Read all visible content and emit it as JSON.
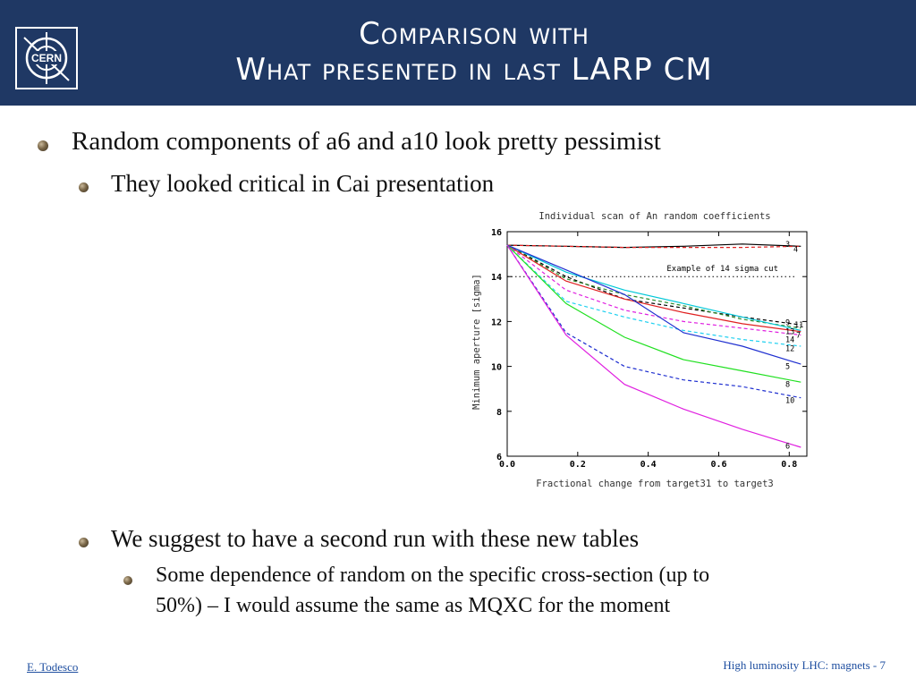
{
  "header": {
    "title_line1": "Comparison with",
    "title_line2": "What presented in last LARP CM",
    "logo_text": "CERN"
  },
  "bullets": {
    "b1": "Random components of a6 and a10 look pretty pessimist",
    "b1_1": "They looked critical in Cai presentation",
    "b2": "We suggest to have a second run with these new tables",
    "b2_1_line1": "Some dependence of random on the specific cross-section (up to",
    "b2_1_line2": "50%) – I would assume the same as MQXC for the moment"
  },
  "footer": {
    "author": "E. Todesco",
    "page": "High luminosity LHC: magnets - 7"
  },
  "colors": {
    "header_bg": "#1f3864",
    "footer_link": "#1f4fa0"
  },
  "chart_data": {
    "type": "line",
    "title": "Individual scan of An random coefficients",
    "xlabel": "Fractional change from target31 to target3",
    "ylabel": "Minimum aperture [sigma]",
    "xlim": [
      0.0,
      0.85
    ],
    "ylim": [
      6,
      16
    ],
    "xticks": [
      "0.0",
      "0.2",
      "0.4",
      "0.6",
      "0.8"
    ],
    "yticks": [
      "6",
      "8",
      "10",
      "12",
      "14",
      "16"
    ],
    "annotation": "Example of 14 sigma cut",
    "reference_line": 14,
    "x": [
      0.0,
      0.167,
      0.333,
      0.5,
      0.667,
      0.833
    ],
    "series": [
      {
        "name": "3",
        "color": "#000000",
        "dash": false,
        "values": [
          15.4,
          15.35,
          15.3,
          15.35,
          15.45,
          15.35
        ]
      },
      {
        "name": "4",
        "color": "#e02020",
        "dash": true,
        "values": [
          15.4,
          15.35,
          15.3,
          15.3,
          15.3,
          15.35
        ]
      },
      {
        "name": "9",
        "color": "#000000",
        "dash": true,
        "values": [
          15.4,
          14.0,
          13.0,
          12.6,
          12.2,
          11.85
        ]
      },
      {
        "name": "11",
        "color": "#2a8a2a",
        "dash": true,
        "values": [
          15.4,
          13.9,
          13.2,
          12.7,
          12.1,
          11.7
        ]
      },
      {
        "name": "13",
        "color": "#e02020",
        "dash": false,
        "values": [
          15.4,
          13.8,
          13.0,
          12.4,
          11.9,
          11.55
        ]
      },
      {
        "name": "7",
        "color": "#00c8d8",
        "dash": false,
        "values": [
          15.4,
          14.2,
          13.4,
          12.8,
          12.2,
          11.6
        ]
      },
      {
        "name": "14",
        "color": "#e020e0",
        "dash": true,
        "values": [
          15.4,
          13.4,
          12.5,
          12.0,
          11.7,
          11.4
        ]
      },
      {
        "name": "12",
        "color": "#20d0f0",
        "dash": true,
        "values": [
          15.4,
          12.9,
          12.2,
          11.6,
          11.2,
          10.9
        ]
      },
      {
        "name": "5",
        "color": "#2030d0",
        "dash": false,
        "values": [
          15.4,
          14.3,
          13.2,
          11.5,
          10.9,
          10.1
        ]
      },
      {
        "name": "8",
        "color": "#20e020",
        "dash": false,
        "values": [
          15.4,
          12.8,
          11.3,
          10.3,
          9.8,
          9.3
        ]
      },
      {
        "name": "10",
        "color": "#2030d0",
        "dash": true,
        "values": [
          15.4,
          11.5,
          10.0,
          9.4,
          9.1,
          8.6
        ]
      },
      {
        "name": "6",
        "color": "#e020e0",
        "dash": false,
        "values": [
          15.4,
          11.4,
          9.2,
          8.1,
          7.2,
          6.4
        ]
      }
    ],
    "label_positions": {
      "3": 15.45,
      "4": 15.3,
      "9": 11.95,
      "11": 11.85,
      "13": 11.55,
      "7": 11.4,
      "14": 11.2,
      "12": 10.8,
      "5": 10.0,
      "8": 9.2,
      "10": 8.5,
      "6": 6.45
    },
    "grid": false,
    "legend": "none"
  }
}
